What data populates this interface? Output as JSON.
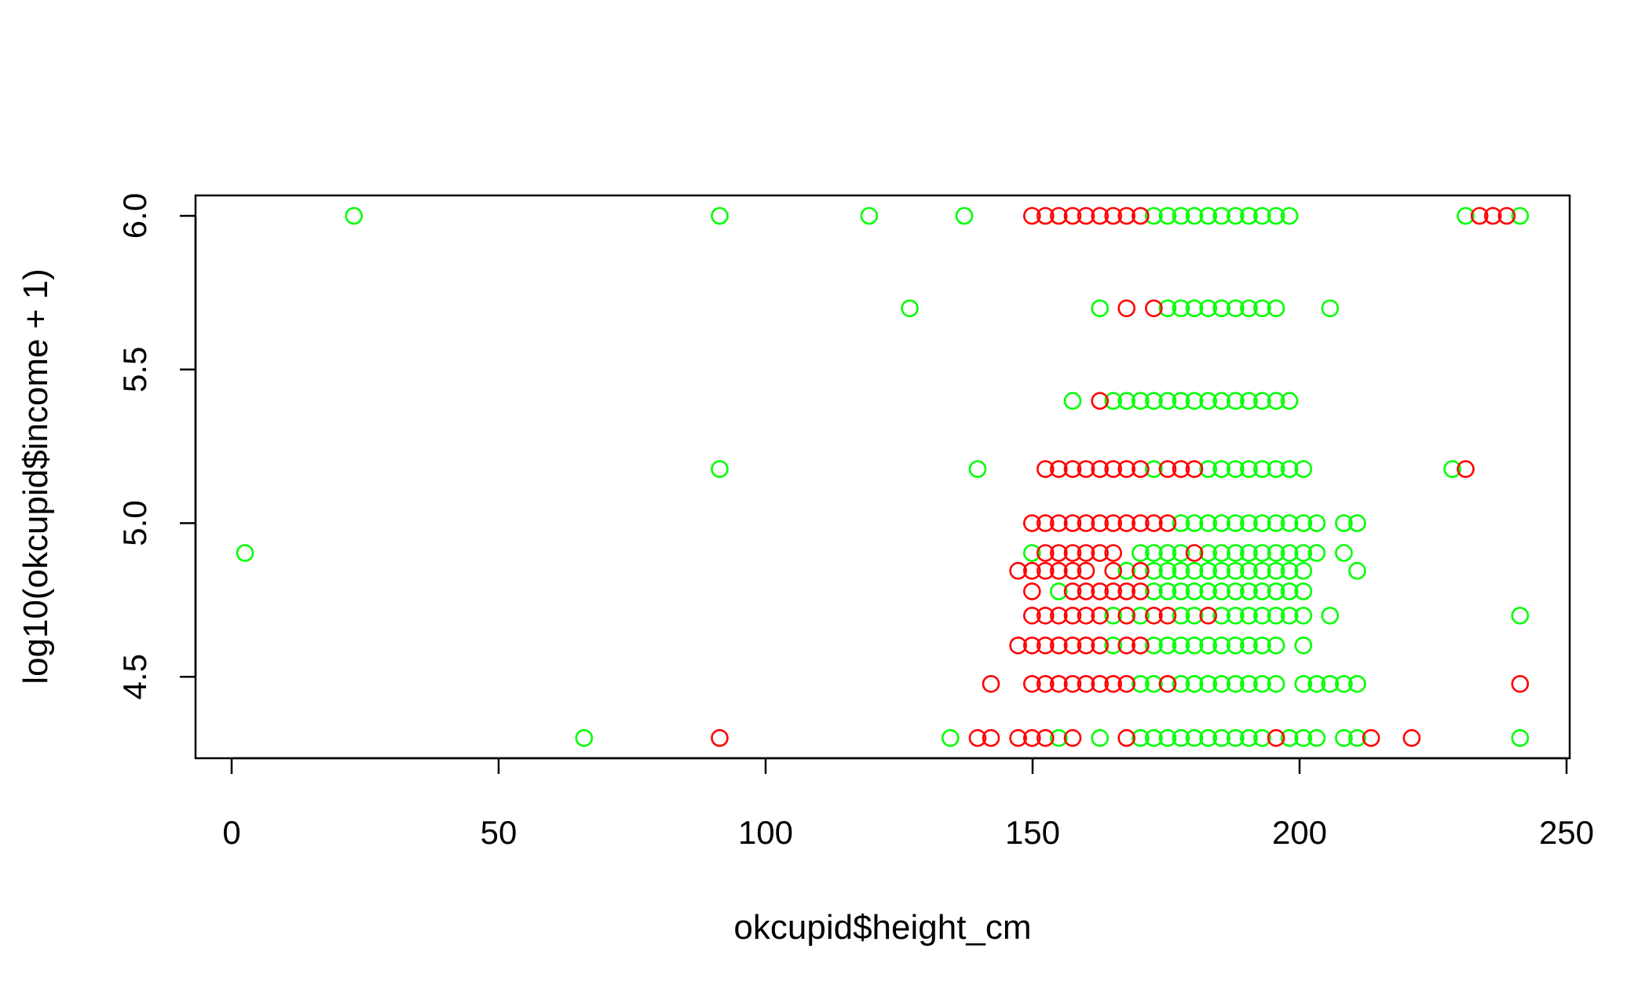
{
  "chart_data": {
    "type": "scatter",
    "title": "",
    "xlabel": "okcupid$height_cm",
    "ylabel": "log10(okcupid$income + 1)",
    "xlim": [
      0,
      250
    ],
    "ylim": [
      4.3,
      6.0
    ],
    "xticks": [
      "0",
      "50",
      "100",
      "150",
      "200",
      "250"
    ],
    "yticks": [
      "4.5",
      "5.0",
      "5.5",
      "6.0"
    ],
    "grid": false,
    "legend": "none",
    "marker": "open-circle",
    "colors": {
      "green": "#00ff00",
      "red": "#ff0000"
    },
    "series": [
      {
        "color": "#00ff00",
        "points": [
          [
            2.5,
            4.903
          ],
          [
            22.9,
            6.0
          ],
          [
            66.0,
            4.301
          ],
          [
            91.4,
            6.0
          ],
          [
            91.4,
            5.176
          ],
          [
            119.4,
            6.0
          ],
          [
            127.0,
            5.699
          ],
          [
            134.6,
            4.301
          ],
          [
            137.2,
            6.0
          ],
          [
            139.7,
            5.176
          ],
          [
            149.9,
            4.903
          ],
          [
            154.9,
            4.778
          ],
          [
            154.9,
            4.301
          ],
          [
            157.5,
            5.398
          ],
          [
            162.6,
            5.699
          ],
          [
            162.6,
            4.301
          ],
          [
            165.1,
            4.699
          ],
          [
            165.1,
            4.602
          ],
          [
            165.1,
            5.398
          ],
          [
            167.6,
            4.845
          ],
          [
            167.6,
            5.398
          ],
          [
            170.2,
            4.903
          ],
          [
            170.2,
            4.477
          ],
          [
            170.2,
            4.699
          ],
          [
            170.2,
            4.301
          ],
          [
            170.2,
            5.398
          ],
          [
            172.7,
            4.778
          ],
          [
            172.7,
            4.903
          ],
          [
            172.7,
            4.845
          ],
          [
            172.7,
            4.602
          ],
          [
            172.7,
            4.477
          ],
          [
            172.7,
            4.301
          ],
          [
            172.7,
            5.176
          ],
          [
            172.7,
            5.398
          ],
          [
            172.7,
            6.0
          ],
          [
            175.3,
            4.778
          ],
          [
            175.3,
            4.903
          ],
          [
            175.3,
            4.845
          ],
          [
            175.3,
            4.602
          ],
          [
            175.3,
            4.477
          ],
          [
            175.3,
            4.301
          ],
          [
            175.3,
            5.699
          ],
          [
            175.3,
            5.398
          ],
          [
            175.3,
            6.0
          ],
          [
            177.8,
            5.0
          ],
          [
            177.8,
            4.778
          ],
          [
            177.8,
            4.903
          ],
          [
            177.8,
            4.845
          ],
          [
            177.8,
            4.602
          ],
          [
            177.8,
            4.699
          ],
          [
            177.8,
            4.477
          ],
          [
            177.8,
            4.301
          ],
          [
            177.8,
            5.699
          ],
          [
            177.8,
            5.398
          ],
          [
            177.8,
            6.0
          ],
          [
            180.3,
            5.0
          ],
          [
            180.3,
            4.778
          ],
          [
            180.3,
            4.845
          ],
          [
            180.3,
            4.602
          ],
          [
            180.3,
            4.699
          ],
          [
            180.3,
            4.477
          ],
          [
            180.3,
            4.301
          ],
          [
            180.3,
            5.699
          ],
          [
            180.3,
            5.398
          ],
          [
            180.3,
            6.0
          ],
          [
            182.9,
            5.0
          ],
          [
            182.9,
            4.778
          ],
          [
            182.9,
            4.903
          ],
          [
            182.9,
            4.845
          ],
          [
            182.9,
            4.602
          ],
          [
            182.9,
            4.477
          ],
          [
            182.9,
            4.301
          ],
          [
            182.9,
            5.176
          ],
          [
            182.9,
            5.699
          ],
          [
            182.9,
            5.398
          ],
          [
            182.9,
            6.0
          ],
          [
            185.4,
            5.0
          ],
          [
            185.4,
            4.778
          ],
          [
            185.4,
            4.903
          ],
          [
            185.4,
            4.845
          ],
          [
            185.4,
            4.602
          ],
          [
            185.4,
            4.699
          ],
          [
            185.4,
            4.477
          ],
          [
            185.4,
            4.301
          ],
          [
            185.4,
            5.176
          ],
          [
            185.4,
            5.699
          ],
          [
            185.4,
            5.398
          ],
          [
            185.4,
            6.0
          ],
          [
            188.0,
            5.0
          ],
          [
            188.0,
            4.778
          ],
          [
            188.0,
            4.903
          ],
          [
            188.0,
            4.845
          ],
          [
            188.0,
            4.602
          ],
          [
            188.0,
            4.699
          ],
          [
            188.0,
            4.477
          ],
          [
            188.0,
            4.301
          ],
          [
            188.0,
            5.176
          ],
          [
            188.0,
            5.699
          ],
          [
            188.0,
            5.398
          ],
          [
            188.0,
            6.0
          ],
          [
            190.5,
            5.0
          ],
          [
            190.5,
            4.778
          ],
          [
            190.5,
            4.903
          ],
          [
            190.5,
            4.845
          ],
          [
            190.5,
            4.602
          ],
          [
            190.5,
            4.699
          ],
          [
            190.5,
            4.477
          ],
          [
            190.5,
            4.301
          ],
          [
            190.5,
            5.176
          ],
          [
            190.5,
            5.699
          ],
          [
            190.5,
            5.398
          ],
          [
            190.5,
            6.0
          ],
          [
            193.0,
            5.0
          ],
          [
            193.0,
            4.778
          ],
          [
            193.0,
            4.903
          ],
          [
            193.0,
            4.845
          ],
          [
            193.0,
            4.602
          ],
          [
            193.0,
            4.699
          ],
          [
            193.0,
            4.477
          ],
          [
            193.0,
            4.301
          ],
          [
            193.0,
            5.176
          ],
          [
            193.0,
            5.699
          ],
          [
            193.0,
            5.398
          ],
          [
            193.0,
            6.0
          ],
          [
            195.6,
            5.0
          ],
          [
            195.6,
            4.778
          ],
          [
            195.6,
            4.903
          ],
          [
            195.6,
            4.845
          ],
          [
            195.6,
            4.602
          ],
          [
            195.6,
            4.699
          ],
          [
            195.6,
            4.477
          ],
          [
            195.6,
            5.176
          ],
          [
            195.6,
            5.699
          ],
          [
            195.6,
            5.398
          ],
          [
            195.6,
            6.0
          ],
          [
            198.1,
            5.0
          ],
          [
            198.1,
            4.778
          ],
          [
            198.1,
            4.903
          ],
          [
            198.1,
            4.845
          ],
          [
            198.1,
            4.699
          ],
          [
            198.1,
            4.301
          ],
          [
            198.1,
            5.176
          ],
          [
            198.1,
            5.398
          ],
          [
            198.1,
            6.0
          ],
          [
            200.7,
            5.0
          ],
          [
            200.7,
            4.778
          ],
          [
            200.7,
            4.903
          ],
          [
            200.7,
            4.845
          ],
          [
            200.7,
            4.602
          ],
          [
            200.7,
            4.699
          ],
          [
            200.7,
            4.477
          ],
          [
            200.7,
            4.301
          ],
          [
            200.7,
            5.176
          ],
          [
            203.2,
            5.0
          ],
          [
            203.2,
            4.903
          ],
          [
            203.2,
            4.477
          ],
          [
            203.2,
            4.301
          ],
          [
            205.7,
            4.699
          ],
          [
            205.7,
            4.477
          ],
          [
            205.7,
            5.699
          ],
          [
            208.3,
            5.0
          ],
          [
            208.3,
            4.903
          ],
          [
            208.3,
            4.477
          ],
          [
            208.3,
            4.301
          ],
          [
            210.8,
            5.0
          ],
          [
            210.8,
            4.845
          ],
          [
            210.8,
            4.477
          ],
          [
            210.8,
            4.301
          ],
          [
            228.6,
            5.176
          ],
          [
            231.1,
            6.0
          ],
          [
            241.3,
            6.0
          ],
          [
            241.3,
            4.699
          ],
          [
            241.3,
            4.301
          ]
        ]
      },
      {
        "color": "#ff0000",
        "points": [
          [
            91.4,
            4.301
          ],
          [
            139.7,
            4.301
          ],
          [
            142.2,
            4.301
          ],
          [
            142.2,
            4.477
          ],
          [
            147.3,
            4.845
          ],
          [
            147.3,
            4.602
          ],
          [
            147.3,
            4.301
          ],
          [
            149.9,
            5.0
          ],
          [
            149.9,
            4.845
          ],
          [
            149.9,
            4.778
          ],
          [
            149.9,
            4.699
          ],
          [
            149.9,
            4.602
          ],
          [
            149.9,
            4.477
          ],
          [
            149.9,
            4.301
          ],
          [
            149.9,
            6.0
          ],
          [
            152.4,
            5.0
          ],
          [
            152.4,
            4.903
          ],
          [
            152.4,
            4.845
          ],
          [
            152.4,
            4.699
          ],
          [
            152.4,
            4.602
          ],
          [
            152.4,
            4.477
          ],
          [
            152.4,
            4.301
          ],
          [
            152.4,
            5.176
          ],
          [
            152.4,
            6.0
          ],
          [
            154.9,
            5.0
          ],
          [
            154.9,
            4.903
          ],
          [
            154.9,
            4.845
          ],
          [
            154.9,
            4.699
          ],
          [
            154.9,
            4.602
          ],
          [
            154.9,
            4.477
          ],
          [
            154.9,
            5.176
          ],
          [
            154.9,
            6.0
          ],
          [
            157.5,
            5.0
          ],
          [
            157.5,
            4.903
          ],
          [
            157.5,
            4.845
          ],
          [
            157.5,
            4.778
          ],
          [
            157.5,
            4.699
          ],
          [
            157.5,
            4.602
          ],
          [
            157.5,
            4.477
          ],
          [
            157.5,
            4.301
          ],
          [
            157.5,
            5.176
          ],
          [
            157.5,
            6.0
          ],
          [
            160.0,
            5.0
          ],
          [
            160.0,
            4.903
          ],
          [
            160.0,
            4.845
          ],
          [
            160.0,
            4.778
          ],
          [
            160.0,
            4.699
          ],
          [
            160.0,
            4.602
          ],
          [
            160.0,
            4.477
          ],
          [
            160.0,
            5.176
          ],
          [
            160.0,
            6.0
          ],
          [
            162.6,
            5.0
          ],
          [
            162.6,
            4.903
          ],
          [
            162.6,
            4.778
          ],
          [
            162.6,
            4.699
          ],
          [
            162.6,
            4.602
          ],
          [
            162.6,
            4.477
          ],
          [
            162.6,
            5.176
          ],
          [
            162.6,
            5.398
          ],
          [
            162.6,
            6.0
          ],
          [
            165.1,
            5.0
          ],
          [
            165.1,
            4.903
          ],
          [
            165.1,
            4.845
          ],
          [
            165.1,
            4.778
          ],
          [
            165.1,
            4.477
          ],
          [
            165.1,
            5.176
          ],
          [
            165.1,
            6.0
          ],
          [
            167.6,
            5.0
          ],
          [
            167.6,
            4.778
          ],
          [
            167.6,
            4.699
          ],
          [
            167.6,
            4.602
          ],
          [
            167.6,
            4.477
          ],
          [
            167.6,
            4.301
          ],
          [
            167.6,
            5.176
          ],
          [
            167.6,
            5.699
          ],
          [
            167.6,
            6.0
          ],
          [
            170.2,
            5.0
          ],
          [
            170.2,
            4.845
          ],
          [
            170.2,
            4.778
          ],
          [
            170.2,
            4.602
          ],
          [
            170.2,
            5.176
          ],
          [
            170.2,
            6.0
          ],
          [
            172.7,
            5.0
          ],
          [
            172.7,
            4.699
          ],
          [
            172.7,
            5.699
          ],
          [
            175.3,
            5.0
          ],
          [
            175.3,
            4.699
          ],
          [
            175.3,
            4.477
          ],
          [
            175.3,
            5.176
          ],
          [
            177.8,
            5.176
          ],
          [
            180.3,
            4.903
          ],
          [
            180.3,
            5.176
          ],
          [
            182.9,
            4.699
          ],
          [
            195.6,
            4.301
          ],
          [
            213.4,
            4.301
          ],
          [
            221.0,
            4.301
          ],
          [
            231.1,
            5.176
          ],
          [
            233.7,
            6.0
          ],
          [
            236.2,
            6.0
          ],
          [
            238.8,
            6.0
          ],
          [
            241.3,
            4.477
          ]
        ]
      }
    ]
  }
}
